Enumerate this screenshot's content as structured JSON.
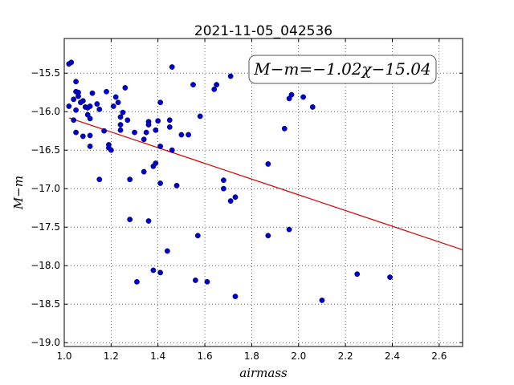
{
  "chart_data": {
    "type": "scatter",
    "title": "2021-11-05_042536",
    "xlabel": "airmass",
    "ylabel": "M−m",
    "xlim": [
      1.0,
      2.7
    ],
    "ylim": [
      -19.05,
      -15.05
    ],
    "xticks": [
      1.0,
      1.2,
      1.4,
      1.6,
      1.8,
      2.0,
      2.2,
      2.4,
      2.6
    ],
    "xtick_labels": [
      "1.0",
      "1.2",
      "1.4",
      "1.6",
      "1.8",
      "2.0",
      "2.2",
      "2.4",
      "2.6"
    ],
    "yticks": [
      -15.5,
      -16.0,
      -16.5,
      -17.0,
      -17.5,
      -18.0,
      -18.5,
      -19.0
    ],
    "ytick_labels": [
      "−15.5",
      "−16.0",
      "−16.5",
      "−17.0",
      "−17.5",
      "−18.0",
      "−18.5",
      "−19.0"
    ],
    "grid": true,
    "point_color": "#0000cc",
    "fit_line": {
      "slope": -1.02,
      "intercept": -15.04,
      "x_range": [
        1.02,
        2.7
      ],
      "color": "#dd0000"
    },
    "annotation": "M−m=−1.02χ−15.04",
    "points": [
      [
        1.02,
        -15.38
      ],
      [
        1.03,
        -15.36
      ],
      [
        1.05,
        -15.61
      ],
      [
        1.05,
        -15.74
      ],
      [
        1.06,
        -15.75
      ],
      [
        1.06,
        -15.8
      ],
      [
        1.04,
        -15.84
      ],
      [
        1.07,
        -15.88
      ],
      [
        1.08,
        -15.86
      ],
      [
        1.02,
        -15.93
      ],
      [
        1.05,
        -15.98
      ],
      [
        1.09,
        -15.94
      ],
      [
        1.1,
        -15.95
      ],
      [
        1.11,
        -15.93
      ],
      [
        1.12,
        -15.76
      ],
      [
        1.14,
        -15.9
      ],
      [
        1.15,
        -15.97
      ],
      [
        1.1,
        -16.04
      ],
      [
        1.11,
        -16.09
      ],
      [
        1.04,
        -16.11
      ],
      [
        1.05,
        -16.27
      ],
      [
        1.08,
        -16.32
      ],
      [
        1.11,
        -16.31
      ],
      [
        1.11,
        -16.45
      ],
      [
        1.15,
        -16.88
      ],
      [
        1.17,
        -16.25
      ],
      [
        1.18,
        -15.74
      ],
      [
        1.19,
        -16.43
      ],
      [
        1.19,
        -16.47
      ],
      [
        1.2,
        -16.5
      ],
      [
        1.21,
        -15.93
      ],
      [
        1.22,
        -15.81
      ],
      [
        1.23,
        -15.88
      ],
      [
        1.24,
        -16.07
      ],
      [
        1.24,
        -16.17
      ],
      [
        1.24,
        -16.24
      ],
      [
        1.25,
        -16.01
      ],
      [
        1.26,
        -15.69
      ],
      [
        1.27,
        -16.11
      ],
      [
        1.28,
        -16.88
      ],
      [
        1.28,
        -17.4
      ],
      [
        1.3,
        -16.27
      ],
      [
        1.31,
        -18.21
      ],
      [
        1.34,
        -16.36
      ],
      [
        1.34,
        -16.78
      ],
      [
        1.35,
        -16.27
      ],
      [
        1.36,
        -16.13
      ],
      [
        1.36,
        -16.17
      ],
      [
        1.36,
        -17.42
      ],
      [
        1.38,
        -16.71
      ],
      [
        1.39,
        -16.67
      ],
      [
        1.39,
        -16.24
      ],
      [
        1.38,
        -18.06
      ],
      [
        1.4,
        -16.12
      ],
      [
        1.41,
        -15.88
      ],
      [
        1.41,
        -16.45
      ],
      [
        1.41,
        -16.93
      ],
      [
        1.41,
        -18.09
      ],
      [
        1.44,
        -17.81
      ],
      [
        1.45,
        -16.11
      ],
      [
        1.45,
        -16.2
      ],
      [
        1.46,
        -16.5
      ],
      [
        1.46,
        -15.42
      ],
      [
        1.48,
        -16.96
      ],
      [
        1.5,
        -16.3
      ],
      [
        1.53,
        -16.3
      ],
      [
        1.55,
        -15.65
      ],
      [
        1.56,
        -18.19
      ],
      [
        1.57,
        -17.61
      ],
      [
        1.58,
        -16.06
      ],
      [
        1.61,
        -18.21
      ],
      [
        1.64,
        -15.71
      ],
      [
        1.65,
        -15.65
      ],
      [
        1.68,
        -16.89
      ],
      [
        1.68,
        -17.0
      ],
      [
        1.71,
        -15.54
      ],
      [
        1.71,
        -17.16
      ],
      [
        1.73,
        -17.11
      ],
      [
        1.73,
        -18.4
      ],
      [
        1.87,
        -16.68
      ],
      [
        1.87,
        -17.61
      ],
      [
        1.94,
        -16.22
      ],
      [
        1.96,
        -17.53
      ],
      [
        1.96,
        -15.83
      ],
      [
        1.97,
        -15.78
      ],
      [
        2.02,
        -15.81
      ],
      [
        2.06,
        -15.94
      ],
      [
        2.1,
        -18.45
      ],
      [
        2.25,
        -18.11
      ],
      [
        2.39,
        -18.15
      ]
    ]
  }
}
